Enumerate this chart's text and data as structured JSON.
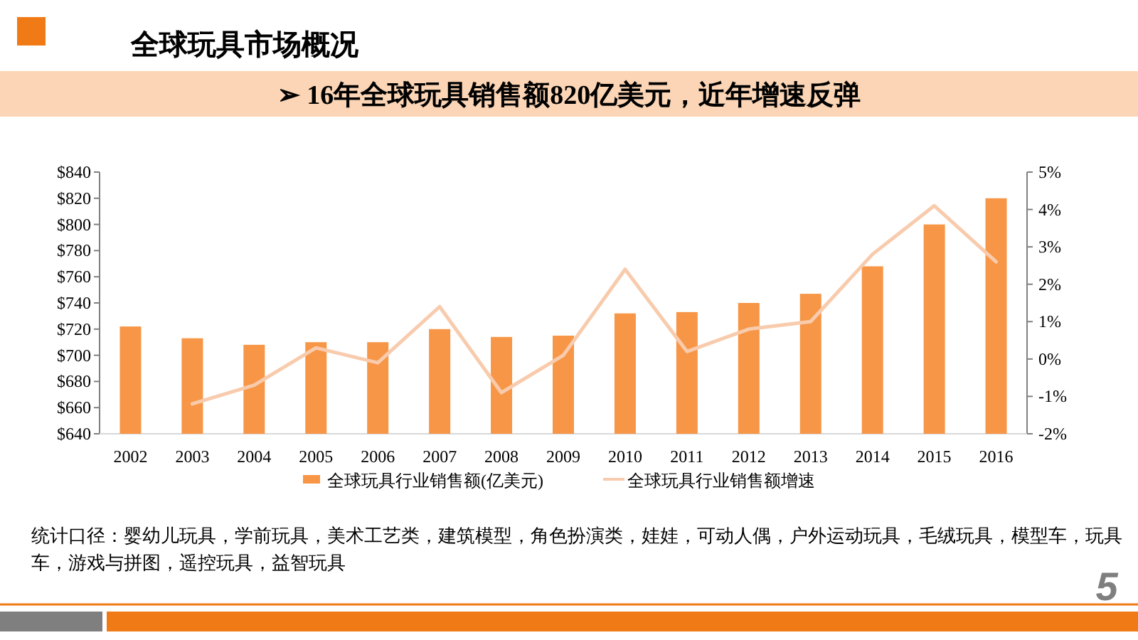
{
  "chart_data": {
    "type": "bar",
    "title": "全球玩具市场概况",
    "subtitle": "➢ 16年全球玩具销售额820亿美元，近年增速反弹",
    "categories": [
      "2002",
      "2003",
      "2004",
      "2005",
      "2006",
      "2007",
      "2008",
      "2009",
      "2010",
      "2011",
      "2012",
      "2013",
      "2014",
      "2015",
      "2016"
    ],
    "series": [
      {
        "name": "全球玩具行业销售额(亿美元)",
        "color": "#f79646",
        "values": [
          722,
          713,
          708,
          710,
          710,
          720,
          714,
          715,
          732,
          733,
          740,
          747,
          768,
          800,
          820
        ]
      },
      {
        "name": "全球玩具行业销售额增速",
        "type": "line",
        "axis": "y2",
        "color": "#f8cbad",
        "values": [
          null,
          -1.2,
          -0.7,
          0.3,
          -0.1,
          1.4,
          -0.9,
          0.1,
          2.4,
          0.2,
          0.8,
          1.0,
          2.8,
          4.1,
          2.6
        ]
      }
    ],
    "ylim": [
      640,
      840
    ],
    "yticks": [
      {
        "value": 640,
        "label": "$640"
      },
      {
        "value": 660,
        "label": "$660"
      },
      {
        "value": 680,
        "label": "$680"
      },
      {
        "value": 700,
        "label": "$700"
      },
      {
        "value": 720,
        "label": "$720"
      },
      {
        "value": 740,
        "label": "$740"
      },
      {
        "value": 760,
        "label": "$760"
      },
      {
        "value": 780,
        "label": "$780"
      },
      {
        "value": 800,
        "label": "$800"
      },
      {
        "value": 820,
        "label": "$820"
      },
      {
        "value": 840,
        "label": "$840"
      }
    ],
    "y2lim": [
      -2,
      5
    ],
    "y2ticks": [
      {
        "value": -2,
        "label": "-2%"
      },
      {
        "value": -1,
        "label": "-1%"
      },
      {
        "value": 0,
        "label": "0%"
      },
      {
        "value": 1,
        "label": "1%"
      },
      {
        "value": 2,
        "label": "2%"
      },
      {
        "value": 3,
        "label": "3%"
      },
      {
        "value": 4,
        "label": "4%"
      },
      {
        "value": 5,
        "label": "5%"
      }
    ],
    "legend": "bottom",
    "annotations": [
      "统计口径：婴幼儿玩具，学前玩具，美术工艺类，建筑模型，角色扮演类，娃娃，可动人偶，户外运动玩具，毛绒玩具，模型车，玩具车，游戏与拼图，遥控玩具，益智玩具",
      "5"
    ]
  }
}
